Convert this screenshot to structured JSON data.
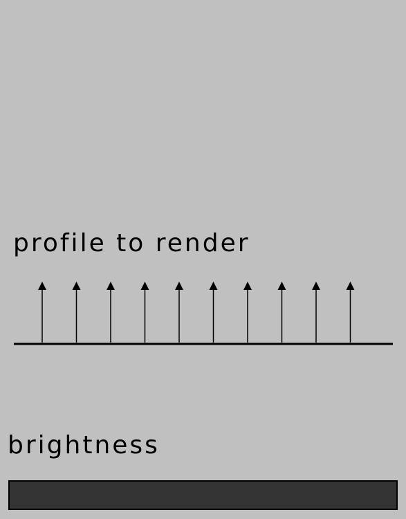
{
  "profile": {
    "title": "profile to render",
    "arrow_count": 10
  },
  "brightness": {
    "label": "brightness",
    "bar_color": "#333333"
  },
  "colors": {
    "background": "#c0c0c0",
    "ink": "#000000"
  }
}
